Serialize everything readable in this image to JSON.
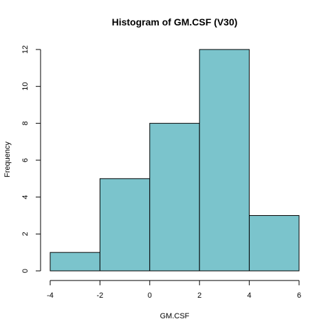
{
  "chart_data": {
    "type": "bar",
    "title": "Histogram of GM.CSF (V30)",
    "xlabel": "GM.CSF",
    "ylabel": "Frequency",
    "bins": [
      {
        "from": -4,
        "to": -2,
        "value": 1
      },
      {
        "from": -2,
        "to": 0,
        "value": 5
      },
      {
        "from": 0,
        "to": 2,
        "value": 8
      },
      {
        "from": 2,
        "to": 4,
        "value": 12
      },
      {
        "from": 4,
        "to": 6,
        "value": 3
      }
    ],
    "xlim": [
      -4,
      6
    ],
    "ylim": [
      0,
      12
    ],
    "x_ticks": [
      "-4",
      "-2",
      "0",
      "2",
      "4",
      "6"
    ],
    "y_ticks": [
      "0",
      "2",
      "4",
      "6",
      "8",
      "10",
      "12"
    ],
    "bar_color": "#7bc4cc",
    "grid": false,
    "legend": "none"
  }
}
